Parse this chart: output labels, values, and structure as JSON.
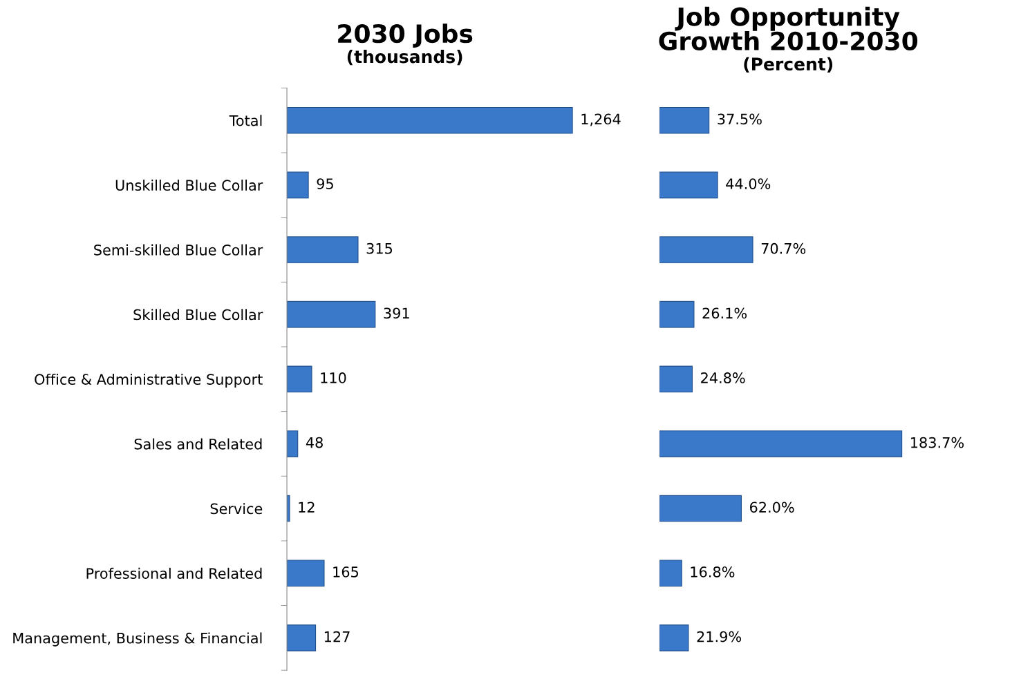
{
  "chart_data": [
    {
      "type": "bar",
      "orientation": "horizontal",
      "title": "2030 Jobs",
      "subtitle": "(thousands)",
      "categories": [
        "Total",
        "Unskilled Blue Collar",
        "Semi-skilled Blue Collar",
        "Skilled Blue Collar",
        "Office & Administrative Support",
        "Sales and Related",
        "Service",
        "Professional and Related",
        "Management, Business & Financial"
      ],
      "values": [
        1264,
        95,
        315,
        391,
        110,
        48,
        12,
        165,
        127
      ],
      "value_labels": [
        "1,264",
        "95",
        "315",
        "391",
        "110",
        "48",
        "12",
        "165",
        "127"
      ],
      "color": "#3a78c9",
      "tick_labels": "y",
      "grid": false,
      "legend": false
    },
    {
      "type": "bar",
      "orientation": "horizontal",
      "title": "Job Opportunity\nGrowth 2010-2030",
      "subtitle": "(Percent)",
      "categories": [
        null,
        null,
        null,
        null,
        null,
        null,
        null,
        null,
        null
      ],
      "values": [
        37.5,
        44.0,
        70.7,
        26.1,
        24.8,
        183.7,
        62.0,
        16.8,
        21.9
      ],
      "value_labels": [
        "37.5%",
        "44.0%",
        "70.7%",
        "26.1%",
        "24.8%",
        "183.7%",
        "62.0%",
        "16.8%",
        "21.9%"
      ],
      "color": "#3a78c9",
      "tick_labels": false,
      "grid": false,
      "legend": false
    }
  ]
}
